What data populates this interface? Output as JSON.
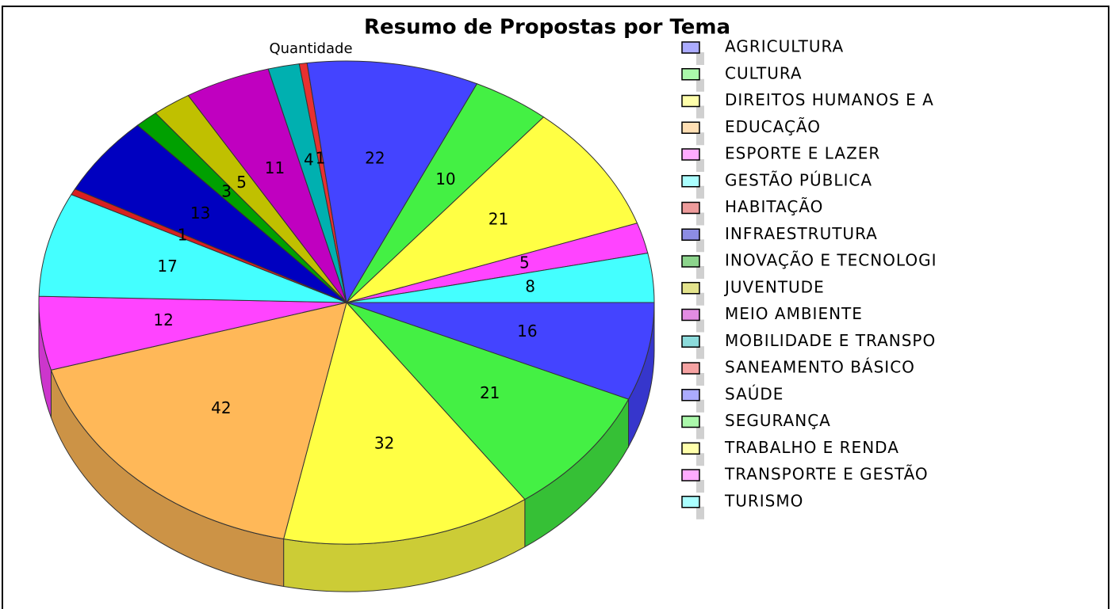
{
  "chart_data": {
    "type": "pie",
    "title": "Resumo de Propostas por Tema",
    "subtitle": "Quantidade",
    "categories": [
      "AGRICULTURA",
      "CULTURA",
      "DIREITOS HUMANOS E A",
      "EDUCAÇÃO",
      "ESPORTE E LAZER",
      "GESTÃO PÚBLICA",
      "HABITAÇÃO",
      "INFRAESTRUTURA",
      "INOVAÇÃO E TECNOLOGI",
      "JUVENTUDE",
      "MEIO AMBIENTE",
      "MOBILIDADE E TRANSPO",
      "SANEAMENTO BÁSICO",
      "SAÚDE",
      "SEGURANÇA",
      "TRABALHO E RENDA",
      "TRANSPORTE E GESTÃO",
      "TURISMO"
    ],
    "values": [
      16,
      21,
      32,
      42,
      12,
      17,
      1,
      13,
      3,
      5,
      11,
      4,
      1,
      22,
      10,
      21,
      5,
      8
    ],
    "colors": [
      "#4444ff",
      "#44f044",
      "#ffff44",
      "#ffb858",
      "#ff44ff",
      "#44ffff",
      "#d82020",
      "#0000c0",
      "#00a000",
      "#c0c000",
      "#c000c0",
      "#00b0b0",
      "#e83030",
      "#4444ff",
      "#44f044",
      "#ffff44",
      "#ff44ff",
      "#44ffff"
    ],
    "legend": "right"
  }
}
